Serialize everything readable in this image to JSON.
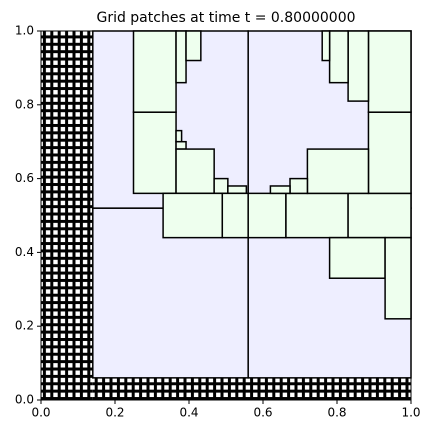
{
  "chart_data": {
    "type": "patches",
    "title": "Grid patches at time t =     0.80000000",
    "xlim": [
      0,
      1
    ],
    "ylim": [
      0,
      1
    ],
    "xticks": [
      {
        "value": 0,
        "label": "0.0"
      },
      0.2,
      0.4,
      0.6,
      0.8,
      {
        "value": 1,
        "label": "1.0"
      }
    ],
    "yticks": [
      {
        "value": 0,
        "label": "0.0"
      },
      0.2,
      0.4,
      0.6,
      0.8,
      {
        "value": 1,
        "label": "1.0"
      }
    ],
    "patch_groups": [
      {
        "color": "#000000",
        "hatch": true,
        "patches": [
          [
            0,
            0.14,
            0,
            1
          ],
          [
            0.14,
            1,
            0,
            0.06
          ]
        ]
      },
      {
        "color": "#eeeeff",
        "hatch": false,
        "patches": [
          [
            0.14,
            0.56,
            0.06,
            0.52
          ],
          [
            0.56,
            1,
            0.06,
            0.52
          ],
          [
            0.14,
            0.56,
            0.52,
            1
          ],
          [
            0.56,
            1,
            0.52,
            1
          ]
        ]
      },
      {
        "color": "#eeffee",
        "hatch": false,
        "patches": [
          [
            0.25,
            0.365,
            0.56,
            0.78
          ],
          [
            0.25,
            0.365,
            0.78,
            1
          ],
          [
            0.365,
            0.392,
            0.86,
            1
          ],
          [
            0.392,
            0.432,
            0.92,
            1
          ],
          [
            0.365,
            0.38,
            0.7,
            0.73
          ],
          [
            0.365,
            0.392,
            0.68,
            0.7
          ],
          [
            0.365,
            0.468,
            0.56,
            0.68
          ],
          [
            0.468,
            0.505,
            0.56,
            0.6
          ],
          [
            0.505,
            0.555,
            0.56,
            0.58
          ],
          [
            0.33,
            0.49,
            0.44,
            0.56
          ],
          [
            0.49,
            0.56,
            0.44,
            0.56
          ],
          [
            0.56,
            0.662,
            0.44,
            0.56
          ],
          [
            0.662,
            0.83,
            0.44,
            0.56
          ],
          [
            0.83,
            1,
            0.44,
            0.56
          ],
          [
            0.78,
            0.93,
            0.33,
            0.44
          ],
          [
            0.93,
            1,
            0.22,
            0.44
          ],
          [
            0.885,
            1,
            0.56,
            0.78
          ],
          [
            0.885,
            1,
            0.78,
            1
          ],
          [
            0.83,
            0.885,
            0.81,
            1
          ],
          [
            0.78,
            0.83,
            0.86,
            1
          ],
          [
            0.76,
            0.78,
            0.92,
            1
          ],
          [
            0.72,
            0.885,
            0.56,
            0.68
          ],
          [
            0.673,
            0.72,
            0.56,
            0.6
          ],
          [
            0.62,
            0.673,
            0.56,
            0.58
          ]
        ]
      }
    ]
  }
}
